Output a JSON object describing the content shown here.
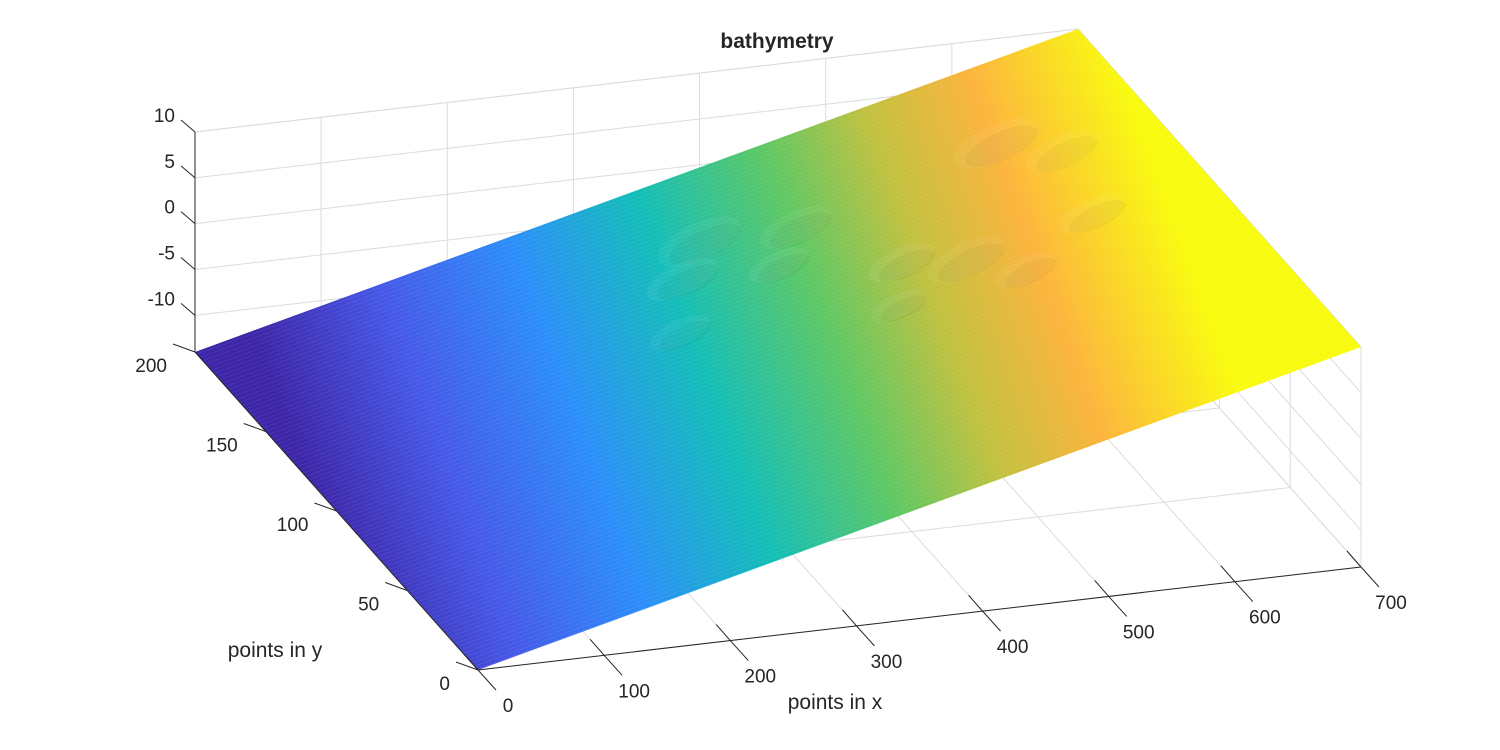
{
  "chart_data": {
    "type": "surface",
    "title": "bathymetry",
    "xlabel": "points in x",
    "ylabel": "points in y",
    "zlabel": "",
    "xlim": [
      0,
      700
    ],
    "ylim": [
      0,
      200
    ],
    "zlim": [
      -14,
      10
    ],
    "xticks": [
      "0",
      "100",
      "200",
      "300",
      "400",
      "500",
      "600",
      "700"
    ],
    "yticks": [
      "0",
      "50",
      "100",
      "150",
      "200"
    ],
    "zticks": [
      "-10",
      "-5",
      "0",
      "5",
      "10"
    ],
    "grid": true,
    "colormap": "parula",
    "surface": {
      "x_range": [
        0,
        700
      ],
      "y_range": [
        0,
        200
      ],
      "z_at_x0": -14,
      "z_at_x700": 10,
      "description_of_shape": "planar slope rising from x=0 to x=700 with small bumps between x~300 and x~650"
    },
    "colors": {
      "low": "#3e26a8",
      "mid": "#13beb8",
      "high": "#f9fb0e"
    }
  }
}
